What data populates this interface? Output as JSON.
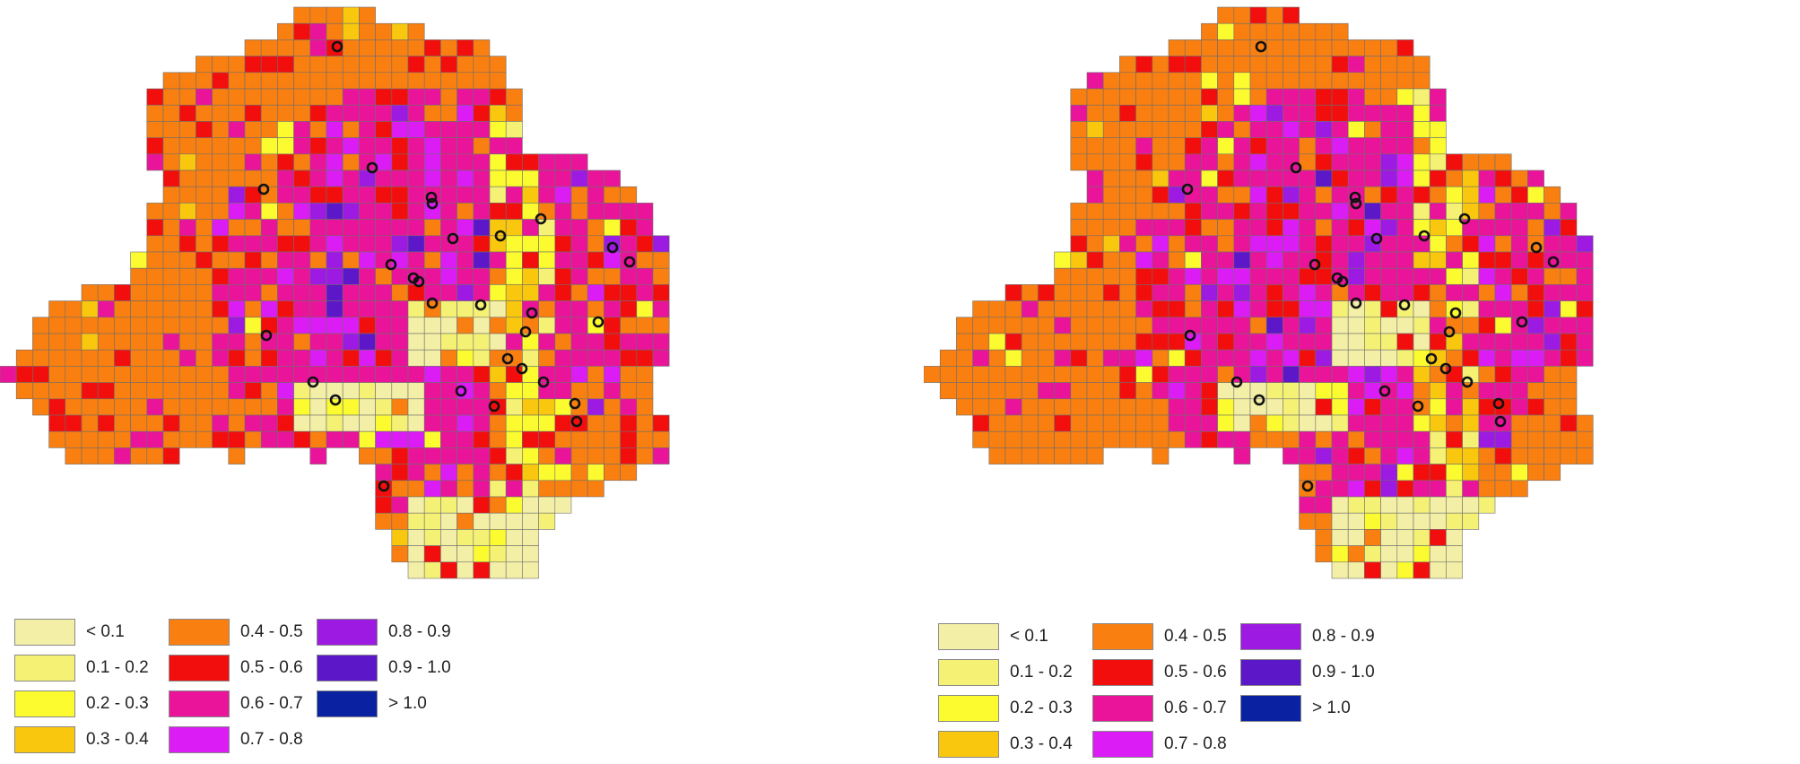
{
  "palette": {
    "c0": "#F3EFA6",
    "c1": "#F5F175",
    "c2": "#FBFB30",
    "c3": "#F9C80E",
    "c4": "#F97F10",
    "c5": "#F30E0E",
    "c6": "#E9149A",
    "c7": "#DB1CF4",
    "c8": "#9C1AE2",
    "c9": "#5B17C8",
    "c10": "#0A22A2"
  },
  "legend": {
    "items": [
      {
        "label": "< 0.1",
        "color_key": "c0"
      },
      {
        "label": "0.1 - 0.2",
        "color_key": "c1"
      },
      {
        "label": "0.2 - 0.3",
        "color_key": "c2"
      },
      {
        "label": "0.3 - 0.4",
        "color_key": "c3"
      },
      {
        "label": "0.4 - 0.5",
        "color_key": "c4"
      },
      {
        "label": "0.5 - 0.6",
        "color_key": "c5"
      },
      {
        "label": "0.6 - 0.7",
        "color_key": "c6"
      },
      {
        "label": "0.7 - 0.8",
        "color_key": "c7"
      },
      {
        "label": "0.8 - 0.9",
        "color_key": "c8"
      },
      {
        "label": "0.9 - 1.0",
        "color_key": "c9"
      },
      {
        "label": "> 1.0",
        "color_key": "c10"
      }
    ]
  },
  "maps": [
    {
      "name": "left"
    },
    {
      "name": "right"
    }
  ]
}
